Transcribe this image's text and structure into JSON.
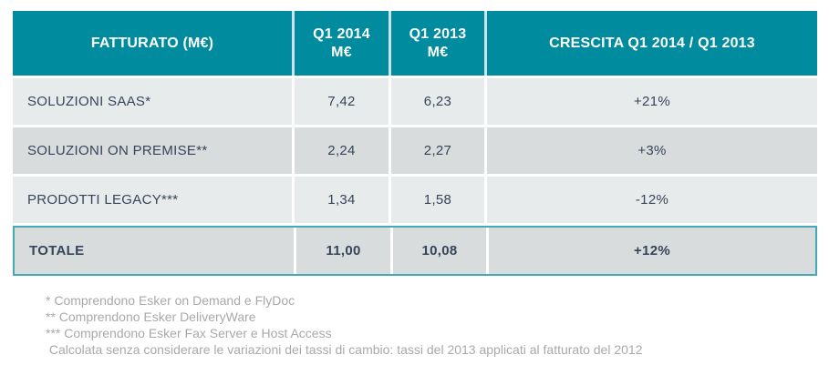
{
  "colors": {
    "header_bg": "#008c9e",
    "header_sep": "#cfe3e5",
    "row_light": "#e8ebec",
    "row_dark": "#d8dcdd",
    "total_border": "#45a9b4",
    "cell_text": "#36455a",
    "header_text": "#ffffff",
    "footnote_text": "#a9a9a9"
  },
  "table": {
    "headers": {
      "revenue": "FATTURATO (M€)",
      "q1_2014": "Q1 2014\nM€",
      "q1_2013": "Q1 2013\nM€",
      "growth": "CRESCITA Q1 2014 / Q1 2013"
    },
    "rows": [
      {
        "label": "SOLUZIONI SAAS*",
        "q1_2014": "7,42",
        "q1_2013": "6,23",
        "growth": "+21%"
      },
      {
        "label": "SOLUZIONI ON PREMISE**",
        "q1_2014": "2,24",
        "q1_2013": "2,27",
        "growth": "+3%"
      },
      {
        "label": "PRODOTTI LEGACY***",
        "q1_2014": "1,34",
        "q1_2013": "1,58",
        "growth": "-12%"
      }
    ],
    "total": {
      "label": "TOTALE",
      "q1_2014": "11,00",
      "q1_2013": "10,08",
      "growth": "+12%"
    }
  },
  "footnotes": [
    "* Comprendono Esker on Demand e FlyDoc",
    "** Comprendono Esker DeliveryWare",
    "*** Comprendono Esker Fax Server e Host Access",
    " Calcolata senza considerare le variazioni dei tassi di cambio: tassi del 2013 applicati al fatturato del 2012"
  ],
  "chart_data": {
    "type": "table",
    "title": "FATTURATO (M€)",
    "columns": [
      "FATTURATO (M€)",
      "Q1 2014 M€",
      "Q1 2013 M€",
      "CRESCITA Q1 2014 / Q1 2013"
    ],
    "rows": [
      [
        "SOLUZIONI SAAS*",
        7.42,
        6.23,
        "+21%"
      ],
      [
        "SOLUZIONI ON PREMISE**",
        2.24,
        2.27,
        "+3%"
      ],
      [
        "PRODOTTI LEGACY***",
        1.34,
        1.58,
        "-12%"
      ],
      [
        "TOTALE",
        11.0,
        10.08,
        "+12%"
      ]
    ],
    "notes": [
      "* Comprendono Esker on Demand e FlyDoc",
      "** Comprendono Esker DeliveryWare",
      "*** Comprendono Esker Fax Server e Host Access",
      "Calcolata senza considerare le variazioni dei tassi di cambio: tassi del 2013 applicati al fatturato del 2012"
    ]
  }
}
